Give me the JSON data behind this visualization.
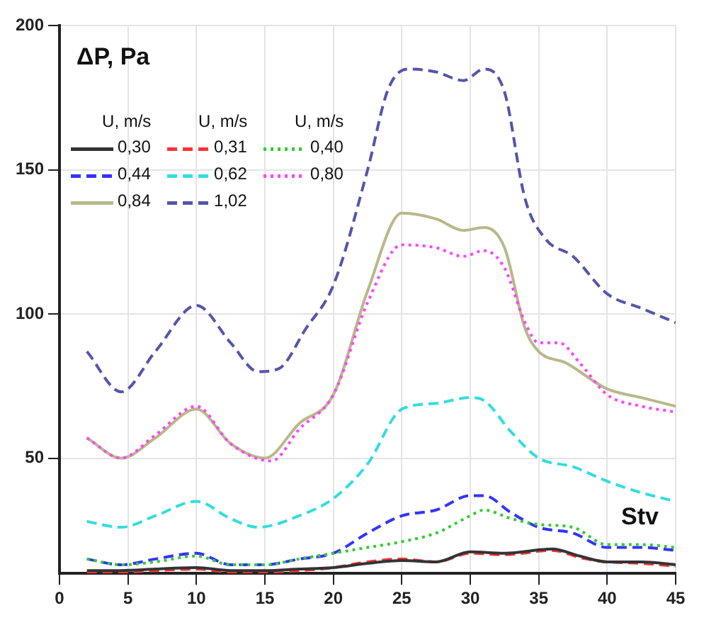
{
  "chart_data": {
    "type": "line",
    "ylabel": "ΔP, Pa",
    "legend_title": "U, m/s",
    "legend": "top left",
    "grid": true,
    "xlim": [
      0,
      45
    ],
    "xticks": [
      0,
      5,
      10,
      15,
      20,
      25,
      30,
      35,
      40,
      45
    ],
    "ylim": [
      10,
      200
    ],
    "yticks": [
      50,
      100,
      150,
      200
    ],
    "annotations": [
      "Stv"
    ],
    "series": [
      {
        "name": "0,30",
        "color": "#333333",
        "line_style": "solid",
        "x": [
          2,
          4.5,
          7,
          10,
          12.5,
          15,
          17.5,
          20,
          22.5,
          25,
          27.5,
          30,
          32.5,
          36,
          38,
          40,
          42.5,
          45
        ],
        "values": [
          11,
          11,
          11.5,
          12,
          11,
          11,
          11.5,
          12,
          13.5,
          14.5,
          14,
          17.5,
          17,
          18.5,
          16,
          14,
          14,
          13
        ]
      },
      {
        "name": "0,31",
        "color": "#ff3333",
        "line_style": "dashed",
        "x": [
          2,
          4.5,
          7,
          10,
          12.5,
          15,
          17.5,
          20,
          22.5,
          25,
          27.5,
          30,
          32.5,
          36,
          38,
          40,
          42.5,
          45
        ],
        "values": [
          10.5,
          10.5,
          11,
          11.5,
          10.5,
          10.5,
          11,
          12,
          14,
          15,
          14,
          17,
          16.5,
          18,
          15.5,
          14,
          13.5,
          12.5
        ]
      },
      {
        "name": "0,40",
        "color": "#33cc33",
        "line_style": "dotted",
        "x": [
          2,
          4.5,
          7,
          10,
          12.5,
          15,
          17.5,
          20,
          22.5,
          25,
          27.5,
          30,
          31,
          33,
          35,
          37.5,
          40,
          42.5,
          45
        ],
        "values": [
          15,
          13,
          14,
          16,
          13,
          13,
          15,
          17,
          19,
          21,
          24,
          30,
          32,
          29,
          27,
          26,
          20,
          20,
          19
        ]
      },
      {
        "name": "0,44",
        "color": "#3333ff",
        "line_style": "dashed",
        "x": [
          2,
          4.5,
          7,
          10,
          12.5,
          15,
          17.5,
          20,
          22.5,
          25,
          27.5,
          30,
          31,
          33,
          35,
          37.5,
          40,
          42.5,
          45
        ],
        "values": [
          15,
          13,
          15,
          17,
          13,
          13,
          15,
          17,
          24,
          30,
          32,
          37,
          37,
          31,
          26,
          24,
          19,
          19,
          18
        ]
      },
      {
        "name": "0,62",
        "color": "#33dddd",
        "line_style": "dashed",
        "x": [
          2,
          4.5,
          7,
          10,
          12.5,
          14.5,
          17.5,
          20,
          22.5,
          25,
          27.5,
          30,
          31,
          33,
          35,
          37.5,
          40,
          42.5,
          45
        ],
        "values": [
          28,
          26,
          30,
          35,
          29,
          26,
          30,
          36,
          48,
          67,
          69,
          71,
          70,
          59,
          50,
          47,
          42,
          38,
          35
        ]
      },
      {
        "name": "0,80",
        "color": "#ff44ff",
        "line_style": "dotted",
        "x": [
          2,
          4.5,
          7,
          10,
          12.5,
          15.5,
          17.5,
          20,
          22.5,
          25,
          27.5,
          29.5,
          31,
          32.5,
          34,
          35,
          36.5,
          38,
          40,
          42.5,
          45
        ],
        "values": [
          57,
          50,
          58,
          68,
          55,
          49,
          60,
          72,
          104,
          124,
          123,
          120,
          122,
          116,
          97,
          90,
          90,
          83,
          72,
          68,
          66
        ]
      },
      {
        "name": "0,84",
        "color": "#b8b88a",
        "line_style": "solid",
        "x": [
          2,
          4.5,
          7,
          10,
          12.5,
          15,
          17.5,
          20,
          22.5,
          25,
          27.5,
          29.5,
          31,
          32.5,
          34,
          35,
          37,
          40,
          42.5,
          45
        ],
        "values": [
          57,
          50,
          57,
          67,
          55,
          50,
          62,
          72,
          108,
          135,
          133,
          129,
          130,
          123,
          95,
          87,
          83,
          74,
          71,
          68
        ]
      },
      {
        "name": "1,02",
        "color": "#5555aa",
        "line_style": "dashed",
        "x": [
          2,
          4.5,
          7,
          10,
          12.5,
          14.5,
          16,
          18,
          20,
          22.5,
          24,
          25.5,
          27.5,
          29.5,
          31,
          32.5,
          34,
          35.5,
          37.5,
          40,
          42.5,
          45
        ],
        "values": [
          87,
          73,
          87,
          103,
          90,
          80,
          81,
          95,
          110,
          150,
          178,
          185,
          184,
          181,
          185,
          177,
          140,
          126,
          120,
          107,
          102,
          97
        ]
      }
    ]
  }
}
